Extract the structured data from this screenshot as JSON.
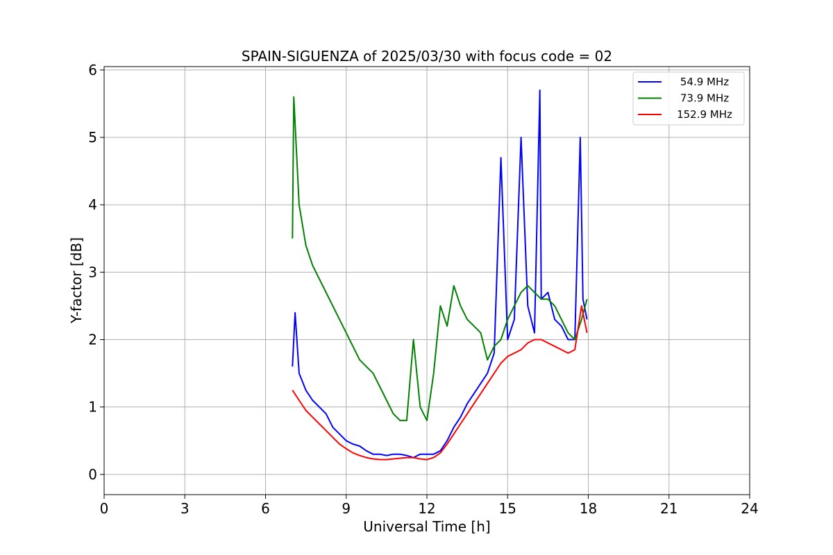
{
  "chart_data": {
    "type": "line",
    "title": "SPAIN-SIGUENZA of 2025/03/30 with focus code = 02",
    "xlabel": "Universal Time [h]",
    "ylabel": "Y-factor [dB]",
    "xlim": [
      0,
      24
    ],
    "ylim": [
      -0.3,
      6.05
    ],
    "xticks": [
      "0",
      "3",
      "6",
      "9",
      "12",
      "15",
      "18",
      "21",
      "24"
    ],
    "yticks": [
      "0",
      "1",
      "2",
      "3",
      "4",
      "5",
      "6"
    ],
    "grid": true,
    "legend_position": "top-right",
    "series": [
      {
        "name": "54.9 MHz",
        "color": "#0000ff",
        "x": [
          7.0,
          7.1,
          7.25,
          7.5,
          7.75,
          8.0,
          8.25,
          8.5,
          8.75,
          9.0,
          9.25,
          9.5,
          9.75,
          10.0,
          10.25,
          10.5,
          10.75,
          11.0,
          11.25,
          11.5,
          11.75,
          12.0,
          12.25,
          12.5,
          12.75,
          13.0,
          13.25,
          13.5,
          13.75,
          14.0,
          14.25,
          14.5,
          14.75,
          15.0,
          15.25,
          15.5,
          15.75,
          16.0,
          16.2,
          16.25,
          16.5,
          16.75,
          17.0,
          17.25,
          17.5,
          17.7,
          17.8,
          17.95
        ],
        "y": [
          1.6,
          2.4,
          1.5,
          1.25,
          1.1,
          1.0,
          0.9,
          0.7,
          0.6,
          0.5,
          0.45,
          0.42,
          0.35,
          0.3,
          0.3,
          0.28,
          0.3,
          0.3,
          0.28,
          0.25,
          0.3,
          0.3,
          0.3,
          0.35,
          0.5,
          0.7,
          0.85,
          1.05,
          1.2,
          1.35,
          1.5,
          1.8,
          4.7,
          2.0,
          2.3,
          5.0,
          2.5,
          2.1,
          5.7,
          2.6,
          2.7,
          2.3,
          2.2,
          2.0,
          2.0,
          5.0,
          2.6,
          2.3
        ]
      },
      {
        "name": "73.9 MHz",
        "color": "#008000",
        "x": [
          7.0,
          7.05,
          7.25,
          7.5,
          7.75,
          8.0,
          8.25,
          8.5,
          8.75,
          9.0,
          9.25,
          9.5,
          9.75,
          10.0,
          10.25,
          10.5,
          10.75,
          11.0,
          11.25,
          11.5,
          11.75,
          12.0,
          12.25,
          12.5,
          12.75,
          13.0,
          13.25,
          13.5,
          13.75,
          14.0,
          14.25,
          14.5,
          14.75,
          15.0,
          15.25,
          15.5,
          15.75,
          16.0,
          16.25,
          16.5,
          16.75,
          17.0,
          17.25,
          17.5,
          17.75,
          17.95
        ],
        "y": [
          3.5,
          5.6,
          4.0,
          3.4,
          3.1,
          2.9,
          2.7,
          2.5,
          2.3,
          2.1,
          1.9,
          1.7,
          1.6,
          1.5,
          1.3,
          1.1,
          0.9,
          0.8,
          0.8,
          2.0,
          1.0,
          0.8,
          1.5,
          2.5,
          2.2,
          2.8,
          2.5,
          2.3,
          2.2,
          2.1,
          1.7,
          1.9,
          2.0,
          2.3,
          2.5,
          2.7,
          2.8,
          2.7,
          2.6,
          2.6,
          2.5,
          2.3,
          2.1,
          2.0,
          2.3,
          2.6
        ]
      },
      {
        "name": "152.9 MHz",
        "color": "#ff0000",
        "x": [
          7.0,
          7.25,
          7.5,
          7.75,
          8.0,
          8.25,
          8.5,
          8.75,
          9.0,
          9.25,
          9.5,
          9.75,
          10.0,
          10.25,
          10.5,
          10.75,
          11.0,
          11.25,
          11.5,
          11.75,
          12.0,
          12.25,
          12.5,
          12.75,
          13.0,
          13.25,
          13.5,
          13.75,
          14.0,
          14.25,
          14.5,
          14.75,
          15.0,
          15.25,
          15.5,
          15.75,
          16.0,
          16.25,
          16.5,
          16.75,
          17.0,
          17.25,
          17.5,
          17.75,
          17.95
        ],
        "y": [
          1.25,
          1.1,
          0.95,
          0.85,
          0.75,
          0.65,
          0.55,
          0.45,
          0.38,
          0.32,
          0.28,
          0.25,
          0.23,
          0.22,
          0.22,
          0.23,
          0.24,
          0.25,
          0.25,
          0.23,
          0.22,
          0.25,
          0.32,
          0.45,
          0.6,
          0.75,
          0.9,
          1.05,
          1.2,
          1.35,
          1.5,
          1.65,
          1.75,
          1.8,
          1.85,
          1.95,
          2.0,
          2.0,
          1.95,
          1.9,
          1.85,
          1.8,
          1.85,
          2.5,
          2.1
        ]
      }
    ]
  }
}
